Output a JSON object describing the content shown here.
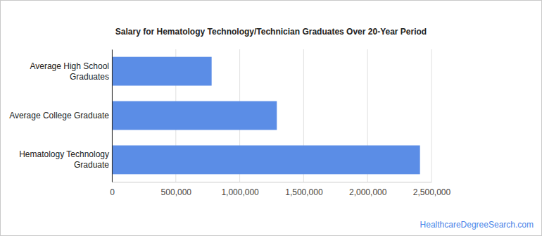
{
  "chart_data": {
    "type": "bar",
    "orientation": "horizontal",
    "title": "Salary for Hematology Technology/Technician Graduates Over 20-Year Period",
    "categories": [
      "Average High School Graduates",
      "Average College Graduate",
      "Hematology Technology Graduate"
    ],
    "values": [
      780000,
      1290000,
      2410000
    ],
    "color": "#5b8de6",
    "xlim": [
      0,
      2500000
    ],
    "xticks": [
      0,
      {
        "value": 500000,
        "label": "500,000"
      },
      {
        "value": 1000000,
        "label": "1,000,000"
      },
      {
        "value": 1500000,
        "label": "1,500,000"
      },
      {
        "value": 2000000,
        "label": "2,000,000"
      },
      {
        "value": 2500000,
        "label": "2,500,000"
      }
    ],
    "grid": true,
    "source": "HealthcareDegreeSearch.com"
  }
}
